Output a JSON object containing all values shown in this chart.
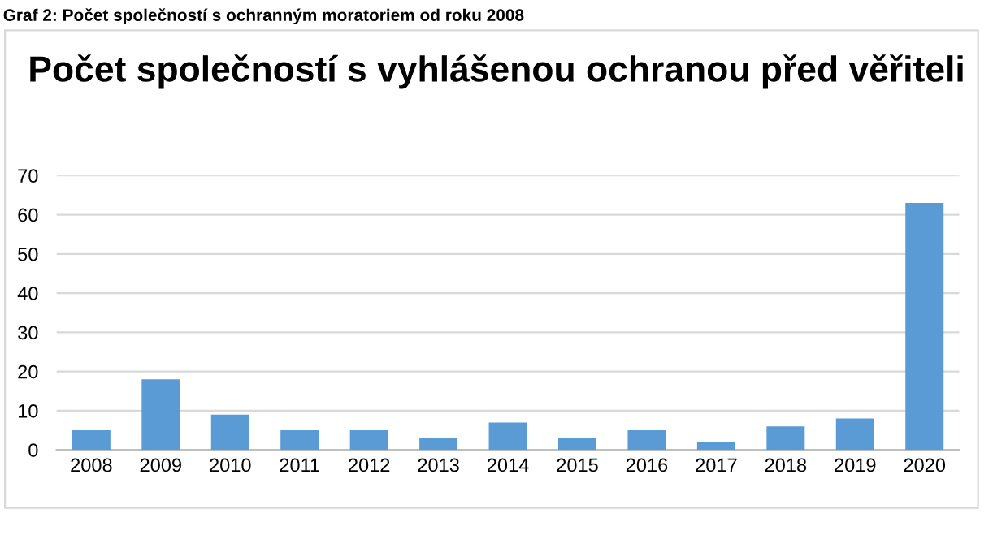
{
  "chart_data": {
    "type": "bar",
    "title": "Počet společností s vyhlášenou ochranou před věřiteli",
    "annotations": [
      "Graf 2: Počet společností s ochranným moratoriem od roku 2008"
    ],
    "categories": [
      "2008",
      "2009",
      "2010",
      "2011",
      "2012",
      "2013",
      "2014",
      "2015",
      "2016",
      "2017",
      "2018",
      "2019",
      "2020"
    ],
    "values": [
      5,
      18,
      9,
      5,
      5,
      3,
      7,
      3,
      5,
      2,
      6,
      8,
      63
    ],
    "color": "#5b9bd5",
    "ylim": [
      0,
      70
    ],
    "yticks": [
      0,
      10,
      20,
      30,
      40,
      50,
      60,
      70
    ],
    "grid": "y"
  }
}
